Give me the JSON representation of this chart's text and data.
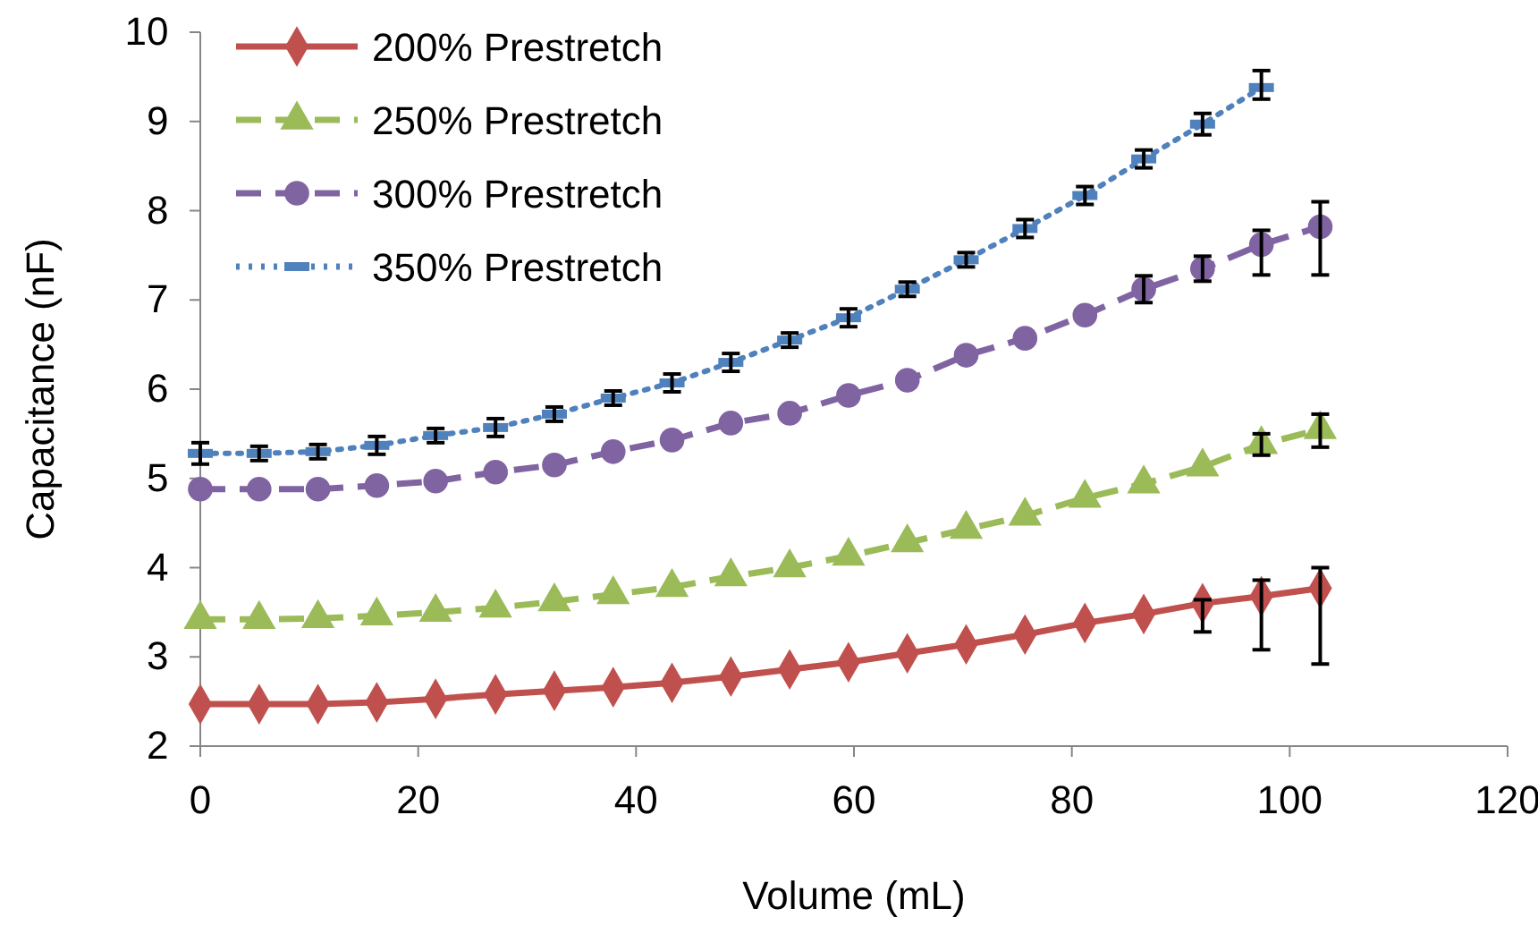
{
  "chart_data": {
    "type": "line",
    "xlabel": "Volume (mL)",
    "ylabel": "Capacitance (nF)",
    "xlim": [
      0,
      120
    ],
    "xticks": [
      0,
      20,
      40,
      60,
      80,
      100,
      120
    ],
    "ylim": [
      2,
      10
    ],
    "yticks": [
      2,
      3,
      4,
      5,
      6,
      7,
      8,
      9,
      10
    ],
    "grid": false,
    "legend": "top left",
    "x": [
      0,
      5.4,
      10.8,
      16.2,
      21.6,
      27.1,
      32.5,
      37.9,
      43.3,
      48.7,
      54.1,
      59.5,
      64.9,
      70.3,
      75.7,
      81.2,
      86.6,
      92,
      97.4,
      102.8
    ],
    "series": [
      {
        "name": "200% Prestretch",
        "color": "#c0504d",
        "marker": "diamond",
        "line_style": "solid",
        "values": [
          2.47,
          2.47,
          2.47,
          2.49,
          2.53,
          2.58,
          2.62,
          2.66,
          2.71,
          2.78,
          2.86,
          2.94,
          3.04,
          3.14,
          3.25,
          3.38,
          3.48,
          3.6,
          3.68,
          3.77
        ],
        "errors": [
          null,
          null,
          null,
          null,
          null,
          null,
          null,
          null,
          null,
          null,
          null,
          null,
          null,
          null,
          null,
          null,
          null,
          [
            3.28,
            3.64
          ],
          [
            3.08,
            3.86
          ],
          [
            2.92,
            4.0
          ]
        ]
      },
      {
        "name": "250% Prestretch",
        "color": "#9bbb59",
        "marker": "triangle",
        "line_style": "dashed",
        "values": [
          3.42,
          3.42,
          3.43,
          3.46,
          3.5,
          3.55,
          3.62,
          3.7,
          3.78,
          3.9,
          4.0,
          4.13,
          4.28,
          4.43,
          4.58,
          4.78,
          4.94,
          5.13,
          5.38,
          5.55
        ],
        "errors": [
          null,
          null,
          null,
          null,
          null,
          null,
          null,
          null,
          null,
          null,
          null,
          null,
          null,
          null,
          null,
          null,
          null,
          null,
          0.12,
          [
            5.35,
            5.72
          ]
        ]
      },
      {
        "name": "300% Prestretch",
        "color": "#8064a2",
        "marker": "circle",
        "line_style": "dashed",
        "values": [
          4.88,
          4.88,
          4.88,
          4.92,
          4.97,
          5.07,
          5.15,
          5.3,
          5.43,
          5.62,
          5.73,
          5.93,
          6.1,
          6.38,
          6.57,
          6.83,
          7.12,
          7.35,
          7.62,
          7.82
        ],
        "errors": [
          null,
          null,
          null,
          null,
          null,
          null,
          null,
          null,
          null,
          null,
          null,
          null,
          null,
          null,
          null,
          null,
          0.15,
          0.14,
          [
            7.28,
            7.78
          ],
          [
            7.28,
            8.1
          ]
        ]
      },
      {
        "name": "350% Prestretch",
        "color": "#4f81bd",
        "marker": "square",
        "line_style": "dotted",
        "x": [
          0,
          5.4,
          10.8,
          16.2,
          21.6,
          27.1,
          32.5,
          37.9,
          43.3,
          48.7,
          54.1,
          59.5,
          64.9,
          70.3,
          75.7,
          81.2,
          86.6,
          92,
          97.4
        ],
        "values": [
          5.28,
          5.28,
          5.3,
          5.37,
          5.48,
          5.57,
          5.72,
          5.9,
          6.07,
          6.3,
          6.55,
          6.8,
          7.12,
          7.45,
          7.8,
          8.17,
          8.58,
          8.97,
          9.38
        ],
        "errors": [
          0.12,
          0.08,
          0.08,
          0.1,
          0.08,
          0.1,
          0.08,
          0.08,
          0.1,
          0.1,
          0.08,
          0.1,
          0.08,
          0.08,
          0.1,
          0.1,
          0.1,
          0.12,
          [
            9.25,
            9.57
          ]
        ]
      }
    ]
  }
}
